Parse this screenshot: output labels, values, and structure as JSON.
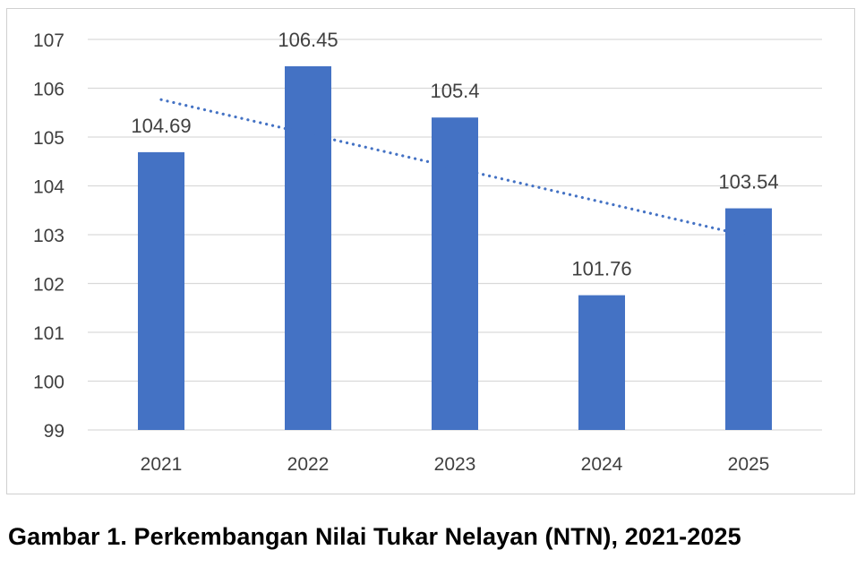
{
  "chart_data": {
    "type": "bar",
    "title": "",
    "xlabel": "",
    "ylabel": "",
    "categories": [
      "2021",
      "2022",
      "2023",
      "2024",
      "2025"
    ],
    "values": [
      104.69,
      106.45,
      105.4,
      101.76,
      103.54
    ],
    "data_labels": [
      "104.69",
      "106.45",
      "105.4",
      "101.76",
      "103.54"
    ],
    "ylim": [
      99,
      107
    ],
    "yticks": [
      "99",
      "100",
      "101",
      "102",
      "103",
      "104",
      "105",
      "106",
      "107"
    ],
    "grid": true,
    "legend": "none",
    "trendline": {
      "type": "linear",
      "style": "dotted"
    },
    "colors": {
      "bar": "#4472C4",
      "trendline": "#4472C4",
      "grid": "#d9d9d9",
      "text": "#404040"
    }
  },
  "caption": "Gambar 1. Perkembangan Nilai Tukar Nelayan (NTN), 2021-2025"
}
